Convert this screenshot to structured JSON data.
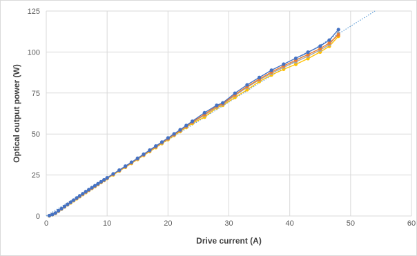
{
  "chart_data": {
    "type": "line",
    "title": "",
    "xlabel": "Drive current (A)",
    "ylabel": "Optical output power (W)",
    "xlim": [
      0,
      60
    ],
    "ylim": [
      0,
      125
    ],
    "xticks": [
      0,
      10,
      20,
      30,
      40,
      50,
      60
    ],
    "yticks": [
      0,
      25,
      50,
      75,
      100,
      125
    ],
    "grid": true,
    "legend": "none",
    "x": [
      0.5,
      1,
      1.5,
      2,
      2.5,
      3,
      3.5,
      4,
      4.5,
      5,
      5.5,
      6,
      6.5,
      7,
      7.5,
      8,
      8.5,
      9,
      9.5,
      10,
      11,
      12,
      13,
      14,
      15,
      16,
      17,
      18,
      19,
      20,
      21,
      22,
      23,
      24,
      26,
      28,
      29,
      31,
      33,
      35,
      37,
      39,
      41,
      43,
      45,
      46.5,
      48
    ],
    "series": [
      {
        "color": "#4472c4",
        "values": [
          0.2,
          0.9,
          1.8,
          3.2,
          4.5,
          5.8,
          7.1,
          8.4,
          9.7,
          11.0,
          12.3,
          13.6,
          14.9,
          16.1,
          17.3,
          18.5,
          19.7,
          20.9,
          22.1,
          23.3,
          25.7,
          28.0,
          30.4,
          32.8,
          35.2,
          37.7,
          40.2,
          42.7,
          45.1,
          47.6,
          50.1,
          52.6,
          55.2,
          57.8,
          63.0,
          67.5,
          69.0,
          74.9,
          80.0,
          84.5,
          88.9,
          92.6,
          96.2,
          99.9,
          103.6,
          107.3,
          113.7
        ]
      },
      {
        "color": "#ed7d31",
        "values": [
          0.2,
          0.9,
          1.7,
          3.1,
          4.4,
          5.7,
          7.0,
          8.3,
          9.6,
          10.8,
          12.1,
          13.4,
          14.7,
          15.9,
          17.1,
          18.3,
          19.5,
          20.7,
          21.9,
          23.1,
          25.5,
          27.8,
          30.1,
          32.5,
          35.0,
          37.4,
          39.9,
          42.3,
          44.8,
          47.2,
          49.7,
          52.2,
          54.8,
          57.3,
          62.0,
          67.0,
          68.5,
          74.0,
          79.0,
          83.5,
          87.8,
          91.6,
          95.0,
          98.5,
          102.1,
          105.5,
          110.5
        ]
      },
      {
        "color": "#a5a5a5",
        "values": [
          0.2,
          0.9,
          1.7,
          3.0,
          4.3,
          5.6,
          6.9,
          8.2,
          9.5,
          10.7,
          12.0,
          13.3,
          14.5,
          15.8,
          17.0,
          18.2,
          19.4,
          20.6,
          21.8,
          23.0,
          25.4,
          27.7,
          30.0,
          32.4,
          34.8,
          37.2,
          39.7,
          42.1,
          44.6,
          47.0,
          49.5,
          52.0,
          54.5,
          57.0,
          61.5,
          66.5,
          68.0,
          73.5,
          78.5,
          83.0,
          87.0,
          90.8,
          94.0,
          97.5,
          101.2,
          104.5,
          111.5
        ]
      },
      {
        "color": "#ffc000",
        "values": [
          0.1,
          0.8,
          1.6,
          2.9,
          4.2,
          5.5,
          6.8,
          8.0,
          9.3,
          10.5,
          11.8,
          13.1,
          14.3,
          15.6,
          16.8,
          18.0,
          19.2,
          20.4,
          21.6,
          22.8,
          25.1,
          27.4,
          29.7,
          32.1,
          34.5,
          36.9,
          39.3,
          41.7,
          44.2,
          46.6,
          49.1,
          51.5,
          54.0,
          56.5,
          60.3,
          66.0,
          67.5,
          72.3,
          77.0,
          82.0,
          86.0,
          89.5,
          92.5,
          96.0,
          100.0,
          103.5,
          109.6
        ]
      }
    ],
    "trendline": {
      "style": "dotted",
      "color": "#5b9bd5",
      "x": [
        0,
        54
      ],
      "y": [
        0,
        125
      ]
    }
  }
}
